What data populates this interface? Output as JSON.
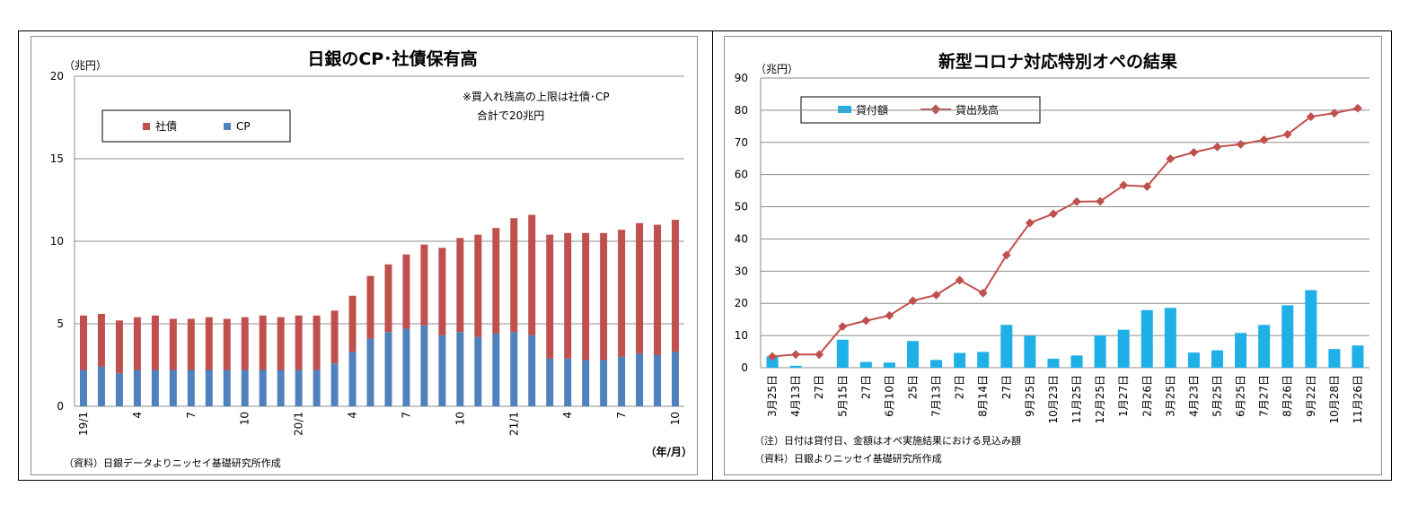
{
  "colors": {
    "corp_bond": "#c0504d",
    "cp": "#4f81bd",
    "loan": "#1fb0e8",
    "balance": "#c0504d"
  },
  "chart_data": [
    {
      "type": "bar",
      "stacked": true,
      "title": "日銀のCP･社債保有高",
      "unit_label": "（兆円）",
      "xlabel": "（年/月）",
      "ylim": [
        0,
        20
      ],
      "yticks": [
        "0",
        "5",
        "10",
        "15",
        "20"
      ],
      "grid": true,
      "legend_position": "top-left",
      "annotation": [
        "※買入れ残高の上限は社債･CP",
        "合計で20兆円"
      ],
      "source": "（資料）日銀データよりニッセイ基礎研究所作成",
      "categories": [
        "19/1",
        "2",
        "3",
        "4",
        "5",
        "6",
        "7",
        "8",
        "9",
        "10",
        "11",
        "12",
        "20/1",
        "2",
        "3",
        "4",
        "5",
        "6",
        "7",
        "8",
        "9",
        "10",
        "11",
        "12",
        "21/1",
        "2",
        "3",
        "4",
        "5",
        "6",
        "7",
        "8",
        "9",
        "10"
      ],
      "x_tick_labels": [
        "19/1",
        "",
        "",
        "4",
        "",
        "",
        "7",
        "",
        "",
        "10",
        "",
        "",
        "20/1",
        "",
        "",
        "4",
        "",
        "",
        "7",
        "",
        "",
        "10",
        "",
        "",
        "21/1",
        "",
        "",
        "4",
        "",
        "",
        "7",
        "",
        "",
        "10"
      ],
      "series": [
        {
          "name": "CP",
          "values": [
            2.2,
            2.4,
            2.0,
            2.2,
            2.2,
            2.2,
            2.2,
            2.2,
            2.2,
            2.2,
            2.2,
            2.2,
            2.2,
            2.2,
            2.6,
            3.3,
            4.1,
            4.5,
            4.7,
            4.9,
            4.3,
            4.5,
            4.2,
            4.4,
            4.5,
            4.3,
            2.9,
            2.9,
            2.8,
            2.8,
            3.0,
            3.2,
            3.1,
            3.3
          ]
        },
        {
          "name": "社債",
          "values": [
            3.3,
            3.2,
            3.2,
            3.2,
            3.3,
            3.1,
            3.1,
            3.2,
            3.1,
            3.2,
            3.3,
            3.2,
            3.3,
            3.3,
            3.2,
            3.4,
            3.8,
            4.1,
            4.5,
            4.9,
            5.3,
            5.7,
            6.2,
            6.4,
            6.9,
            7.3,
            7.5,
            7.6,
            7.7,
            7.7,
            7.7,
            7.9,
            7.9,
            8.0
          ]
        }
      ]
    },
    {
      "type": "bar+line",
      "title": "新型コロナ対応特別オペの結果",
      "unit_label": "（兆円）",
      "ylim": [
        0,
        90
      ],
      "yticks": [
        "0",
        "10",
        "20",
        "30",
        "40",
        "50",
        "60",
        "70",
        "80",
        "90"
      ],
      "grid": true,
      "legend_position": "top-left",
      "notes": [
        "（注）日付は貸付日、金額はオペ実施結果における見込み額",
        "（資料）日銀よりニッセイ基礎研究所作成"
      ],
      "categories": [
        "3月25日",
        "4月13日",
        "27日",
        "5月15日",
        "27日",
        "6月10日",
        "25日",
        "7月13日",
        "27日",
        "8月14日",
        "27日",
        "9月25日",
        "10月23日",
        "11月25日",
        "12月25日",
        "1月27日",
        "2月26日",
        "3月25日",
        "4月23日",
        "5月25日",
        "6月25日",
        "7月27日",
        "8月26日",
        "9月22日",
        "10月28日",
        "11月26日"
      ],
      "series": [
        {
          "name": "貸付額",
          "type": "bar",
          "values": [
            3.5,
            0.6,
            0.0,
            8.7,
            1.8,
            1.6,
            8.3,
            2.4,
            4.6,
            4.9,
            13.3,
            9.9,
            2.8,
            3.8,
            10.0,
            11.8,
            17.9,
            18.6,
            4.7,
            5.4,
            10.8,
            13.3,
            19.4,
            24.1,
            5.8,
            6.9
          ]
        },
        {
          "name": "貸出残高",
          "type": "line",
          "values": [
            3.5,
            4.1,
            4.1,
            12.8,
            14.6,
            16.2,
            20.8,
            22.6,
            27.2,
            23.2,
            35.0,
            45.0,
            47.8,
            51.6,
            51.7,
            56.7,
            56.3,
            64.9,
            66.9,
            68.6,
            69.4,
            70.8,
            72.5,
            78.0,
            79.1,
            80.6
          ]
        }
      ]
    }
  ]
}
